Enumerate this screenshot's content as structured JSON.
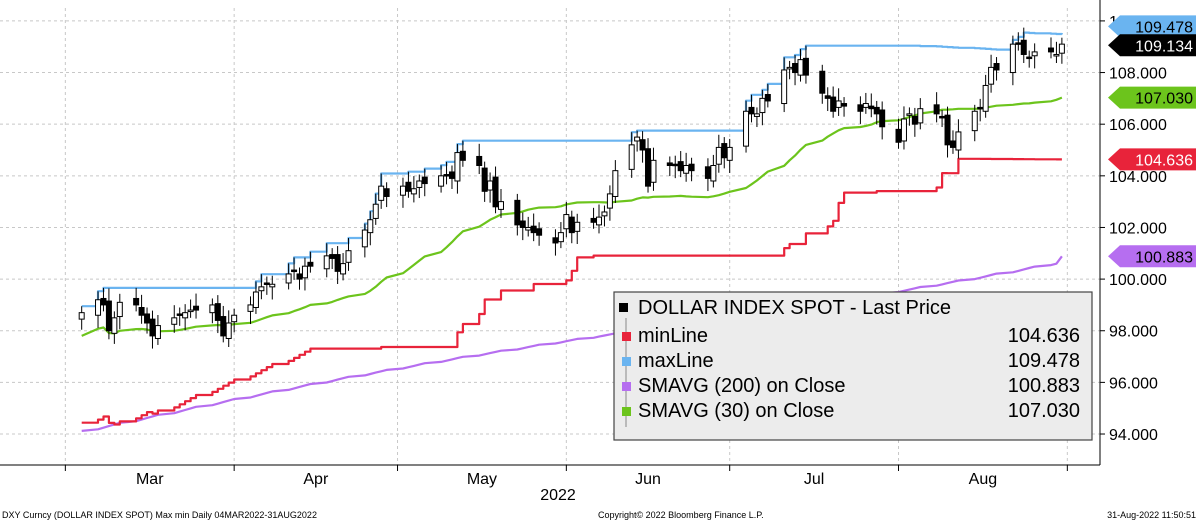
{
  "chart_data": {
    "type": "line",
    "title": "",
    "xlabel": "2022",
    "ylabel": "",
    "ylim": [
      92.8,
      110.5
    ],
    "y_ticks": [
      "94.000",
      "96.000",
      "98.000",
      "100.000",
      "102.000",
      "104.000",
      "106.000",
      "108.000",
      "110.000"
    ],
    "y_tick_values": [
      94,
      96,
      98,
      100,
      102,
      104,
      106,
      108,
      110
    ],
    "x_tick_labels": [
      "Mar",
      "Apr",
      "May",
      "Jun",
      "Jul",
      "Aug"
    ],
    "x_year_label": "2022",
    "date_range": [
      "2022-03-04",
      "2022-08-31"
    ],
    "grid": true,
    "legend_position": "bottom-right",
    "dates": [
      "2022-03-04",
      "2022-03-07",
      "2022-03-08",
      "2022-03-09",
      "2022-03-10",
      "2022-03-11",
      "2022-03-14",
      "2022-03-15",
      "2022-03-16",
      "2022-03-17",
      "2022-03-18",
      "2022-03-21",
      "2022-03-22",
      "2022-03-23",
      "2022-03-24",
      "2022-03-25",
      "2022-03-28",
      "2022-03-29",
      "2022-03-30",
      "2022-03-31",
      "2022-04-01",
      "2022-04-04",
      "2022-04-05",
      "2022-04-06",
      "2022-04-07",
      "2022-04-08",
      "2022-04-11",
      "2022-04-12",
      "2022-04-13",
      "2022-04-14",
      "2022-04-15",
      "2022-04-18",
      "2022-04-19",
      "2022-04-20",
      "2022-04-21",
      "2022-04-22",
      "2022-04-25",
      "2022-04-26",
      "2022-04-27",
      "2022-04-28",
      "2022-04-29",
      "2022-05-02",
      "2022-05-03",
      "2022-05-04",
      "2022-05-05",
      "2022-05-06",
      "2022-05-09",
      "2022-05-10",
      "2022-05-11",
      "2022-05-12",
      "2022-05-13",
      "2022-05-16",
      "2022-05-17",
      "2022-05-18",
      "2022-05-19",
      "2022-05-20",
      "2022-05-23",
      "2022-05-24",
      "2022-05-25",
      "2022-05-26",
      "2022-05-27",
      "2022-05-30",
      "2022-05-31",
      "2022-06-01",
      "2022-06-02",
      "2022-06-03",
      "2022-06-06",
      "2022-06-07",
      "2022-06-08",
      "2022-06-09",
      "2022-06-10",
      "2022-06-13",
      "2022-06-14",
      "2022-06-15",
      "2022-06-16",
      "2022-06-17",
      "2022-06-20",
      "2022-06-21",
      "2022-06-22",
      "2022-06-23",
      "2022-06-24",
      "2022-06-27",
      "2022-06-28",
      "2022-06-29",
      "2022-06-30",
      "2022-07-01",
      "2022-07-04",
      "2022-07-05",
      "2022-07-06",
      "2022-07-07",
      "2022-07-08",
      "2022-07-11",
      "2022-07-12",
      "2022-07-13",
      "2022-07-14",
      "2022-07-15",
      "2022-07-18",
      "2022-07-19",
      "2022-07-20",
      "2022-07-21",
      "2022-07-22",
      "2022-07-25",
      "2022-07-26",
      "2022-07-27",
      "2022-07-28",
      "2022-07-29",
      "2022-08-01",
      "2022-08-02",
      "2022-08-03",
      "2022-08-04",
      "2022-08-05",
      "2022-08-08",
      "2022-08-09",
      "2022-08-10",
      "2022-08-11",
      "2022-08-12",
      "2022-08-15",
      "2022-08-16",
      "2022-08-17",
      "2022-08-18",
      "2022-08-19",
      "2022-08-22",
      "2022-08-23",
      "2022-08-24",
      "2022-08-25",
      "2022-08-26",
      "2022-08-29",
      "2022-08-30",
      "2022-08-31"
    ],
    "price_close": [
      98.7,
      99.2,
      99.0,
      98.0,
      98.5,
      99.1,
      99.0,
      98.6,
      98.3,
      97.8,
      98.2,
      98.5,
      98.6,
      98.7,
      98.8,
      98.8,
      99.0,
      98.4,
      97.8,
      98.3,
      98.6,
      99.0,
      99.5,
      99.7,
      99.8,
      99.8,
      100.2,
      100.3,
      100.0,
      100.5,
      100.5,
      100.9,
      100.8,
      100.3,
      100.6,
      101.1,
      101.9,
      102.3,
      102.9,
      103.6,
      103.2,
      103.6,
      103.4,
      103.5,
      103.8,
      103.7,
      104.0,
      104.0,
      103.9,
      104.9,
      104.6,
      104.4,
      103.4,
      103.8,
      102.8,
      103.0,
      102.1,
      102.0,
      102.0,
      101.8,
      101.7,
      101.4,
      101.8,
      102.5,
      101.8,
      102.2,
      102.2,
      102.4,
      102.6,
      103.3,
      104.2,
      105.2,
      105.5,
      105.0,
      103.6,
      104.6,
      104.4,
      104.4,
      104.2,
      104.4,
      104.2,
      103.9,
      104.4,
      105.1,
      104.7,
      105.1,
      106.5,
      106.4,
      106.4,
      107.0,
      106.9,
      108.1,
      108.2,
      108.0,
      108.5,
      107.9,
      107.2,
      107.0,
      106.5,
      106.9,
      106.7,
      106.5,
      106.8,
      106.6,
      106.4,
      105.9,
      105.3,
      106.2,
      106.4,
      106.0,
      106.6,
      106.4,
      106.3,
      105.2,
      105.1,
      105.7,
      106.5,
      106.6,
      107.5,
      108.2,
      108.1,
      109.1,
      109.1,
      108.7,
      108.6,
      108.8,
      108.8,
      108.7,
      109.1
    ]
  },
  "legend": {
    "header": "DOLLAR INDEX SPOT  - Last Price",
    "items": [
      {
        "label": "minLine",
        "value": "104.636",
        "color": "#e8233a"
      },
      {
        "label": "maxLine",
        "value": "109.478",
        "color": "#6ab4f0"
      },
      {
        "label": "SMAVG (200)  on Close",
        "value": "100.883",
        "color": "#b66ef0"
      },
      {
        "label": "SMAVG (30)  on Close",
        "value": "107.030",
        "color": "#6cc41c"
      }
    ]
  },
  "value_tags": [
    {
      "text": "109.478",
      "value": 109.478,
      "color": "#6ab4f0",
      "text_color": "#000000"
    },
    {
      "text": "109.134",
      "value": 109.134,
      "color": "#000000",
      "text_color": "#ffffff"
    },
    {
      "text": "107.030",
      "value": 107.03,
      "color": "#6cc41c",
      "text_color": "#000000"
    },
    {
      "text": "104.636",
      "value": 104.636,
      "color": "#e8233a",
      "text_color": "#ffffff"
    },
    {
      "text": "100.883",
      "value": 100.883,
      "color": "#b66ef0",
      "text_color": "#000000"
    }
  ],
  "footer": {
    "left": "DXY Curncy (DOLLAR INDEX SPOT) Max min  Daily 04MAR2022-31AUG2022",
    "center": "Copyright© 2022 Bloomberg Finance L.P.",
    "right": "31-Aug-2022 11:50:51"
  },
  "colors": {
    "min_line": "#e8233a",
    "max_line": "#6ab4f0",
    "sma200": "#b66ef0",
    "sma30": "#6cc41c",
    "candle": "#000000",
    "grid": "#c8c8c8"
  }
}
